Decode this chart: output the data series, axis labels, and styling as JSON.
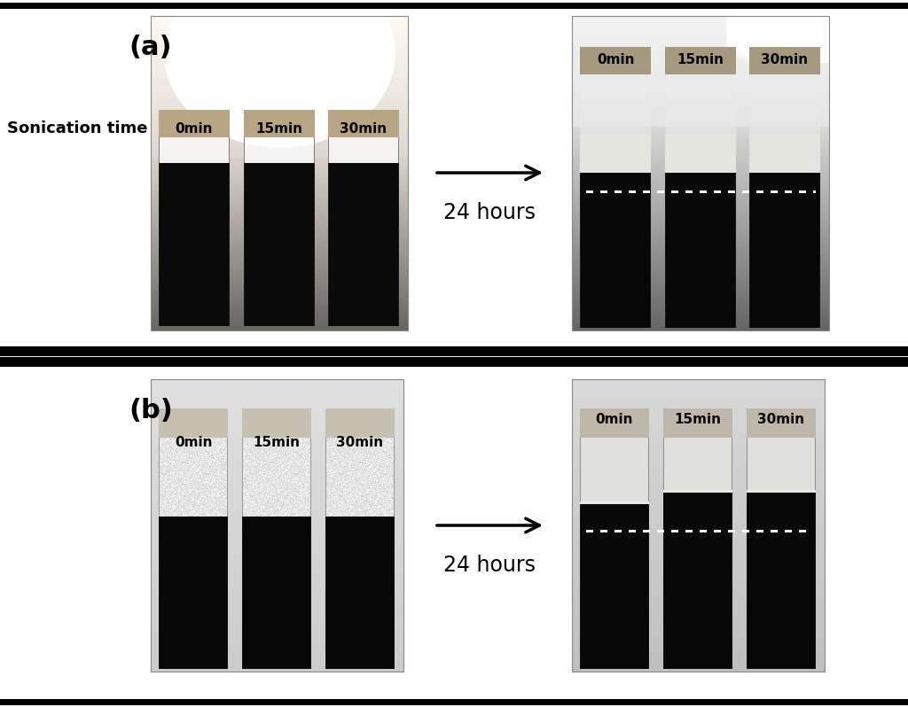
{
  "bg_color": "#ffffff",
  "panel_a_label": "(a)",
  "panel_b_label": "(b)",
  "sonication_label": "Sonication time",
  "arrow_label": "24 hours",
  "vial_labels": [
    "0min",
    "15min",
    "30min"
  ],
  "sonication_fontsize": 13,
  "hours_fontsize": 17,
  "vial_label_fontsize": 11,
  "panel_label_fontsize": 22,
  "sep_lw": 5
}
